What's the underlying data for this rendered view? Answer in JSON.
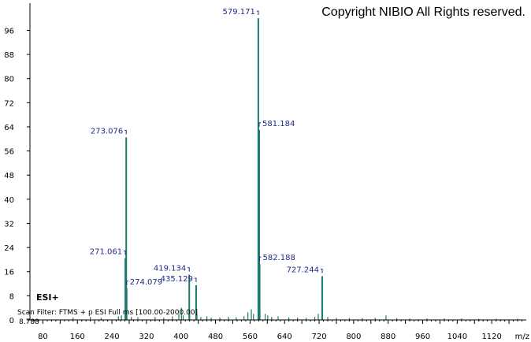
{
  "copyright": "Copyright NIBIO All Rights reserved.",
  "ionization_mode": "ESI+",
  "scan_filter": "Scan Filter: FTMS + p ESI Full ms [100.00-2000.00]",
  "retention_time": "8.788",
  "colors": {
    "peaks": "#1a7a6e",
    "labels": "#1e2a8a",
    "axis": "#000000"
  },
  "chart_data": {
    "type": "bar",
    "xlabel": "m/z",
    "ylabel": "",
    "xlim": [
      50,
      1200
    ],
    "ylim": [
      0,
      105
    ],
    "x_ticks": [
      80,
      160,
      240,
      320,
      400,
      480,
      560,
      640,
      720,
      800,
      880,
      960,
      1040,
      1120
    ],
    "y_ticks": [
      0,
      8,
      16,
      24,
      32,
      40,
      48,
      56,
      64,
      72,
      80,
      88,
      96
    ],
    "labeled_peaks": [
      {
        "mz": 273.076,
        "intensity": 60.5,
        "label": "273.076"
      },
      {
        "mz": 271.061,
        "intensity": 20.5,
        "label": "271.061"
      },
      {
        "mz": 274.079,
        "intensity": 10.5,
        "label": "274.079"
      },
      {
        "mz": 419.134,
        "intensity": 15.0,
        "label": "419.134"
      },
      {
        "mz": 435.129,
        "intensity": 11.5,
        "label": "435.129"
      },
      {
        "mz": 579.171,
        "intensity": 100.0,
        "label": "579.171"
      },
      {
        "mz": 581.184,
        "intensity": 63.0,
        "label": "581.184"
      },
      {
        "mz": 582.188,
        "intensity": 18.5,
        "label": "582.188"
      },
      {
        "mz": 727.244,
        "intensity": 14.5,
        "label": "727.244"
      }
    ],
    "minor_peaks": [
      {
        "mz": 150,
        "intensity": 0.8
      },
      {
        "mz": 190,
        "intensity": 1.0
      },
      {
        "mz": 215,
        "intensity": 0.7
      },
      {
        "mz": 255,
        "intensity": 1.2
      },
      {
        "mz": 262,
        "intensity": 1.5
      },
      {
        "mz": 285,
        "intensity": 1.0
      },
      {
        "mz": 300,
        "intensity": 0.9
      },
      {
        "mz": 340,
        "intensity": 1.0
      },
      {
        "mz": 360,
        "intensity": 0.8
      },
      {
        "mz": 380,
        "intensity": 1.2
      },
      {
        "mz": 395,
        "intensity": 2.0
      },
      {
        "mz": 401,
        "intensity": 4.0
      },
      {
        "mz": 405,
        "intensity": 1.5
      },
      {
        "mz": 420,
        "intensity": 3.0
      },
      {
        "mz": 437,
        "intensity": 2.0
      },
      {
        "mz": 446,
        "intensity": 1.0
      },
      {
        "mz": 460,
        "intensity": 1.2
      },
      {
        "mz": 470,
        "intensity": 0.8
      },
      {
        "mz": 490,
        "intensity": 0.8
      },
      {
        "mz": 510,
        "intensity": 1.0
      },
      {
        "mz": 528,
        "intensity": 0.9
      },
      {
        "mz": 546,
        "intensity": 1.2
      },
      {
        "mz": 555,
        "intensity": 2.5
      },
      {
        "mz": 563,
        "intensity": 3.5
      },
      {
        "mz": 568,
        "intensity": 2.0
      },
      {
        "mz": 580,
        "intensity": 14.0
      },
      {
        "mz": 583,
        "intensity": 3.0
      },
      {
        "mz": 595,
        "intensity": 2.0
      },
      {
        "mz": 601,
        "intensity": 1.5
      },
      {
        "mz": 610,
        "intensity": 1.0
      },
      {
        "mz": 625,
        "intensity": 1.2
      },
      {
        "mz": 650,
        "intensity": 0.8
      },
      {
        "mz": 670,
        "intensity": 0.8
      },
      {
        "mz": 690,
        "intensity": 0.7
      },
      {
        "mz": 710,
        "intensity": 1.0
      },
      {
        "mz": 718,
        "intensity": 2.0
      },
      {
        "mz": 728,
        "intensity": 2.5
      },
      {
        "mz": 740,
        "intensity": 1.0
      },
      {
        "mz": 760,
        "intensity": 0.7
      },
      {
        "mz": 790,
        "intensity": 0.6
      },
      {
        "mz": 820,
        "intensity": 0.6
      },
      {
        "mz": 850,
        "intensity": 0.7
      },
      {
        "mz": 875,
        "intensity": 1.5
      },
      {
        "mz": 900,
        "intensity": 0.6
      },
      {
        "mz": 930,
        "intensity": 0.5
      },
      {
        "mz": 970,
        "intensity": 0.5
      },
      {
        "mz": 1010,
        "intensity": 0.5
      },
      {
        "mz": 1050,
        "intensity": 0.5
      },
      {
        "mz": 1090,
        "intensity": 0.4
      },
      {
        "mz": 1130,
        "intensity": 0.4
      },
      {
        "mz": 1180,
        "intensity": 0.4
      }
    ]
  }
}
